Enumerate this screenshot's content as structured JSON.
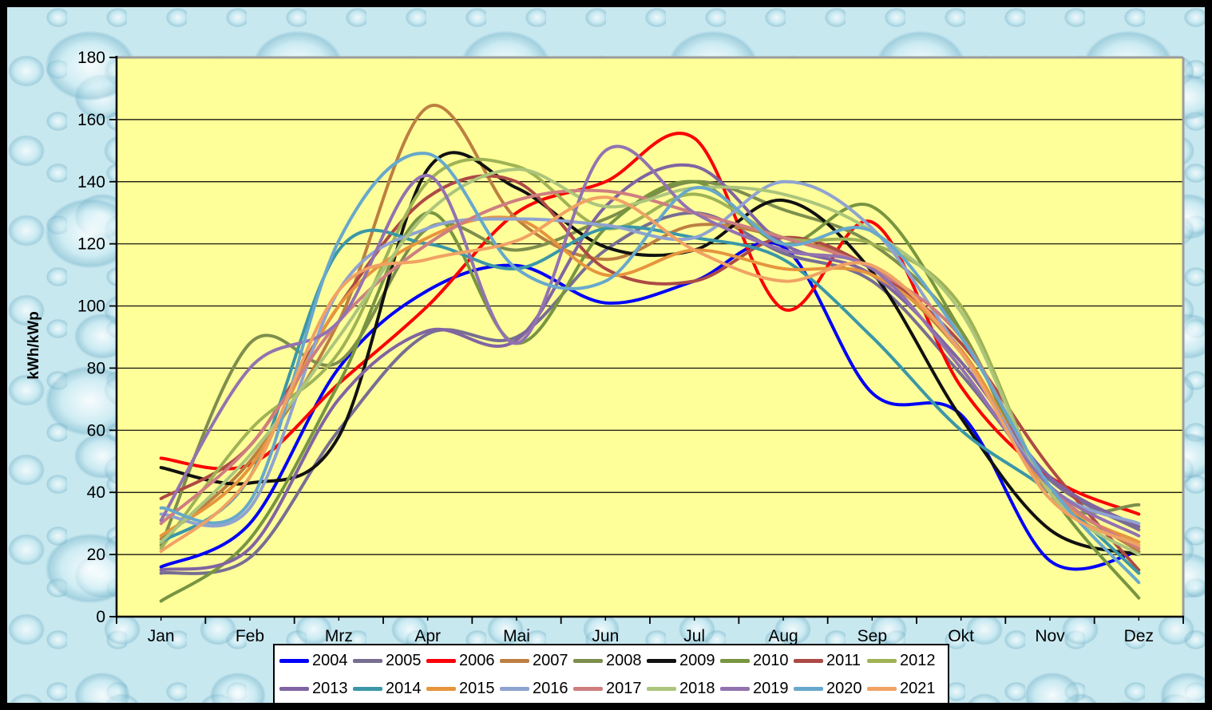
{
  "frame": {
    "border_color": "#000000",
    "outer_texture": "water-droplets-light-blue",
    "plot_border_gray": "#9c9c9c"
  },
  "chart_data": {
    "type": "line",
    "title": "",
    "xlabel": "",
    "ylabel": "kWh/kWp",
    "categories": [
      "Jan",
      "Feb",
      "Mrz",
      "Apr",
      "Mai",
      "Jun",
      "Jul",
      "Aug",
      "Sep",
      "Okt",
      "Nov",
      "Dez"
    ],
    "ylim": [
      0,
      180
    ],
    "ytick_step": 20,
    "yticks": [
      "0",
      "20",
      "40",
      "60",
      "80",
      "100",
      "120",
      "140",
      "160",
      "180"
    ],
    "grid": true,
    "line_style": "smooth",
    "plot_background": "#FFFF99",
    "legend_position": "bottom",
    "legend_rows": 2,
    "series": [
      {
        "name": "2004",
        "color": "#0000f8",
        "values": [
          16,
          30,
          80,
          105,
          113,
          101,
          108,
          119,
          72,
          65,
          18,
          21
        ]
      },
      {
        "name": "2005",
        "color": "#776e92",
        "values": [
          14,
          19,
          60,
          91,
          90,
          118,
          130,
          117,
          108,
          78,
          44,
          28
        ]
      },
      {
        "name": "2006",
        "color": "#fb0006",
        "values": [
          51,
          49,
          75,
          100,
          130,
          140,
          154,
          99,
          127,
          74,
          45,
          33
        ]
      },
      {
        "name": "2007",
        "color": "#bd7f41",
        "values": [
          25,
          50,
          95,
          164,
          128,
          115,
          126,
          122,
          112,
          85,
          42,
          21
        ]
      },
      {
        "name": "2008",
        "color": "#7d8e4d",
        "values": [
          23,
          88,
          82,
          125,
          118,
          128,
          140,
          131,
          120,
          92,
          38,
          36
        ]
      },
      {
        "name": "2009",
        "color": "#111111",
        "values": [
          48,
          43,
          58,
          144,
          138,
          119,
          118,
          134,
          111,
          64,
          28,
          20
        ]
      },
      {
        "name": "2010",
        "color": "#789540",
        "values": [
          5,
          25,
          75,
          130,
          88,
          125,
          140,
          120,
          132,
          92,
          40,
          6
        ]
      },
      {
        "name": "2011",
        "color": "#ad4a45",
        "values": [
          38,
          55,
          100,
          135,
          140,
          112,
          108,
          122,
          112,
          88,
          48,
          15
        ]
      },
      {
        "name": "2012",
        "color": "#9fb356",
        "values": [
          22,
          60,
          85,
          140,
          145,
          125,
          136,
          122,
          120,
          100,
          40,
          23
        ]
      },
      {
        "name": "2013",
        "color": "#8064a2",
        "values": [
          15,
          22,
          70,
          92,
          89,
          132,
          145,
          120,
          110,
          82,
          45,
          29
        ]
      },
      {
        "name": "2014",
        "color": "#3b97a7",
        "values": [
          24,
          45,
          118,
          120,
          112,
          125,
          122,
          115,
          90,
          60,
          40,
          14
        ]
      },
      {
        "name": "2015",
        "color": "#e6953d",
        "values": [
          26,
          48,
          100,
          122,
          128,
          110,
          118,
          112,
          110,
          86,
          40,
          24
        ]
      },
      {
        "name": "2016",
        "color": "#8fa3d0",
        "values": [
          33,
          35,
          105,
          125,
          128,
          126,
          122,
          140,
          125,
          85,
          42,
          30
        ]
      },
      {
        "name": "2017",
        "color": "#ce7e80",
        "values": [
          30,
          55,
          95,
          120,
          134,
          137,
          130,
          122,
          112,
          90,
          42,
          22
        ]
      },
      {
        "name": "2018",
        "color": "#acc57c",
        "values": [
          24,
          52,
          90,
          130,
          144,
          132,
          138,
          136,
          124,
          98,
          40,
          20
        ]
      },
      {
        "name": "2019",
        "color": "#9273b0",
        "values": [
          31,
          80,
          95,
          142,
          88,
          150,
          130,
          118,
          112,
          80,
          42,
          26
        ]
      },
      {
        "name": "2020",
        "color": "#68a8cc",
        "values": [
          35,
          37,
          121,
          149,
          112,
          108,
          138,
          120,
          124,
          90,
          42,
          11
        ]
      },
      {
        "name": "2021",
        "color": "#f0a264",
        "values": [
          21,
          45,
          105,
          115,
          121,
          135,
          118,
          108,
          113,
          85,
          38,
          23
        ]
      }
    ]
  }
}
